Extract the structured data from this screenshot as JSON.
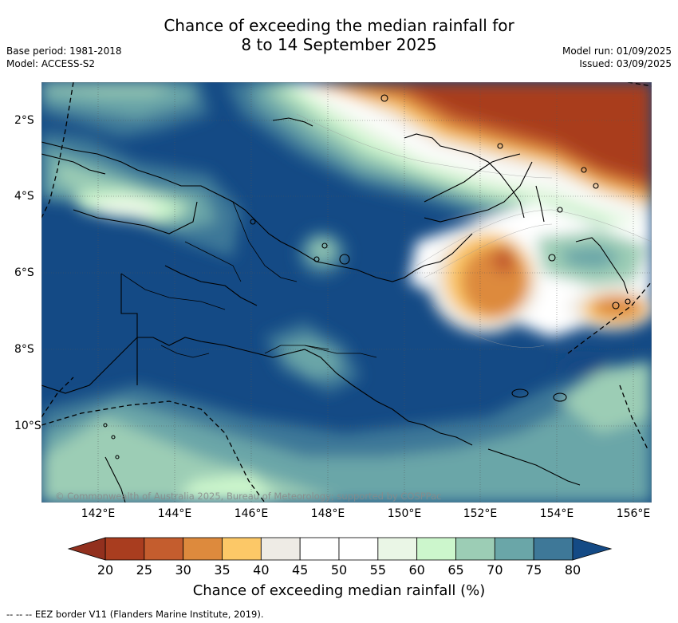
{
  "title": {
    "line1": "Chance of exceeding the median rainfall for",
    "line2": "8 to 14 September 2025"
  },
  "meta": {
    "base_period": "Base period: 1981-2018",
    "model": "Model: ACCESS-S2",
    "model_run": "Model run: 01/09/2025",
    "issued": "Issued: 03/09/2025"
  },
  "map": {
    "lon_labels": [
      "142°E",
      "144°E",
      "146°E",
      "148°E",
      "150°E",
      "152°E",
      "154°E",
      "156°E"
    ],
    "lat_labels": [
      "2°S",
      "4°S",
      "6°S",
      "8°S",
      "10°S"
    ],
    "copyright": "© Commonwealth of Australia 2025, Bureau of Meteorology; supported by COSPPac"
  },
  "colorbar": {
    "ticks": [
      "20",
      "25",
      "30",
      "35",
      "40",
      "45",
      "50",
      "55",
      "60",
      "65",
      "70",
      "75",
      "80"
    ],
    "colors": [
      "#a93d1f",
      "#c45d2e",
      "#dd8a3d",
      "#fcc867",
      "#eeebe5",
      "#ffffff",
      "#ffffff",
      "#eaf6e6",
      "#ccf6cc",
      "#9ccdb5",
      "#6aa6a8",
      "#3e7898"
    ],
    "under_color": "#92301e",
    "over_color": "#144a85",
    "label": "Chance of exceeding median rainfall (%)"
  },
  "footnote": "--  --  -- EEZ border V11 (Flanders Marine Institute, 2019)."
}
